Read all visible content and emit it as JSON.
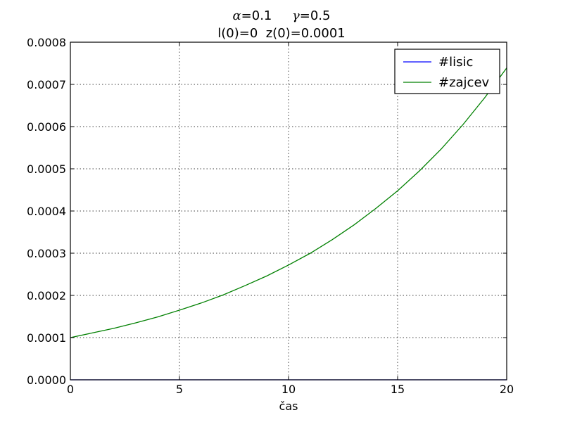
{
  "title": {
    "line1": {
      "alpha_symbol": "α",
      "alpha_eq": "=0.1",
      "gamma_symbol": "γ",
      "gamma_eq": "=0.5"
    },
    "line2": "l(0)=0  z(0)=0.0001"
  },
  "colors": {
    "lisic": "#0000ff",
    "zajcev": "#008000",
    "axis": "#000000",
    "grid": "#000000"
  },
  "chart_data": {
    "type": "line",
    "xlabel": "čas",
    "ylabel": "",
    "xlim": [
      0,
      20
    ],
    "ylim": [
      0,
      0.0008
    ],
    "xticks": [
      0,
      5,
      10,
      15,
      20
    ],
    "yticks": [
      0.0,
      0.0001,
      0.0002,
      0.0003,
      0.0004,
      0.0005,
      0.0006,
      0.0007,
      0.0008
    ],
    "xtick_labels": [
      "0",
      "5",
      "10",
      "15",
      "20"
    ],
    "ytick_labels": [
      "0.0000",
      "0.0001",
      "0.0002",
      "0.0003",
      "0.0004",
      "0.0005",
      "0.0006",
      "0.0007",
      "0.0008"
    ],
    "grid": true,
    "legend_position": "top-right",
    "series": [
      {
        "name": "#lisic",
        "color": "#0000ff",
        "x": [
          0,
          2,
          4,
          6,
          8,
          10,
          12,
          14,
          16,
          18,
          20
        ],
        "y": [
          0,
          0,
          0,
          0,
          0,
          0,
          0,
          0,
          0,
          0,
          0
        ]
      },
      {
        "name": "#zajcev",
        "color": "#008000",
        "x": [
          0,
          1,
          2,
          3,
          4,
          5,
          6,
          7,
          8,
          9,
          10,
          11,
          12,
          13,
          14,
          15,
          16,
          17,
          18,
          19,
          20
        ],
        "y": [
          0.0001,
          0.000111,
          0.000122,
          0.000135,
          0.000149,
          0.000165,
          0.000182,
          0.000201,
          0.000223,
          0.000246,
          0.000272,
          0.0003,
          0.000332,
          0.000367,
          0.000406,
          0.000448,
          0.000495,
          0.000547,
          0.000605,
          0.000669,
          0.000739
        ]
      }
    ]
  }
}
